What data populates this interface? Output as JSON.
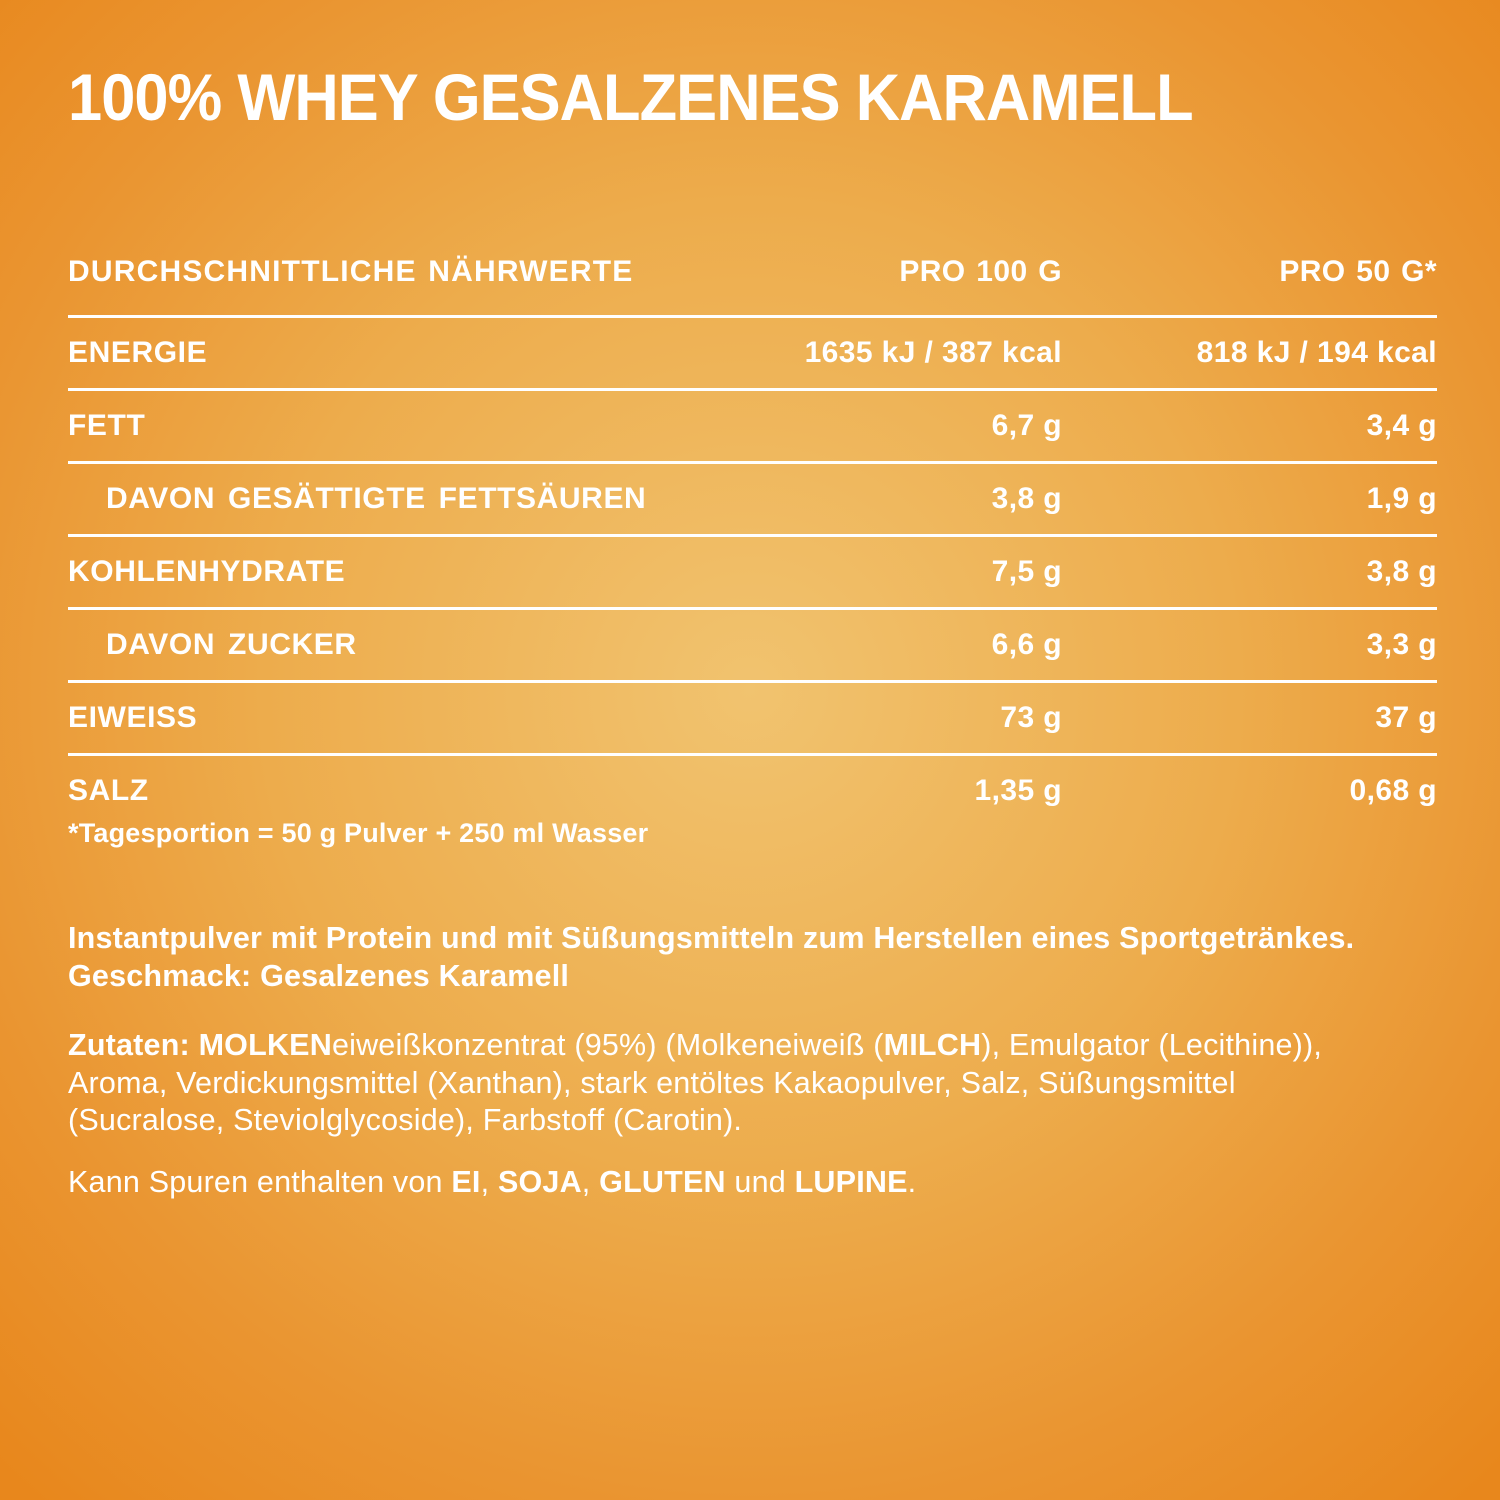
{
  "page": {
    "title": "100% WHEY GESALZENES KARAMELL"
  },
  "colors": {
    "background_center": "#F1C36F",
    "background_mid": "#ECA94B",
    "background_edge": "#E8871C",
    "text": "#FFFFFF",
    "divider": "#FFFFFF"
  },
  "nutrition_table": {
    "header": {
      "nutrients_label": "DURCHSCHNITTLICHE NÄHRWERTE",
      "per_100g_label": "PRO 100 G",
      "per_50g_label": "PRO 50 G*"
    },
    "rows": [
      {
        "label": "ENERGIE",
        "per_100g": "1635 kJ / 387 kcal",
        "per_50g": "818 kJ / 194 kcal",
        "indent": false
      },
      {
        "label": "FETT",
        "per_100g": "6,7 g",
        "per_50g": "3,4 g",
        "indent": false
      },
      {
        "label": "DAVON GESÄTTIGTE FETTSÄUREN",
        "per_100g": "3,8 g",
        "per_50g": "1,9 g",
        "indent": true
      },
      {
        "label": "KOHLENHYDRATE",
        "per_100g": "7,5 g",
        "per_50g": "3,8 g",
        "indent": false
      },
      {
        "label": "DAVON ZUCKER",
        "per_100g": "6,6 g",
        "per_50g": "3,3 g",
        "indent": true
      },
      {
        "label": "EIWEISS",
        "per_100g": "73 g",
        "per_50g": "37 g",
        "indent": false
      },
      {
        "label": "SALZ",
        "per_100g": "1,35 g",
        "per_50g": "0,68 g",
        "indent": false
      }
    ],
    "footnote": "*Tagesportion = 50 g Pulver + 250 ml Wasser"
  },
  "description": {
    "segments": [
      {
        "text": "Instantpulver mit Protein und mit Süßungsmitteln zum Herstellen eines Sportgetränkes. Geschmack: Gesalzenes Karamell",
        "bold": true
      }
    ]
  },
  "ingredients": {
    "segments": [
      {
        "text": "Zutaten:",
        "bold": true
      },
      {
        "text": " ",
        "bold": false
      },
      {
        "text": "MOLKEN",
        "bold": true
      },
      {
        "text": "eiweißkonzentrat (95%) (Molkeneiweiß (",
        "bold": false
      },
      {
        "text": "MILCH",
        "bold": true
      },
      {
        "text": "), Emulgator (Lecithine)), Aroma, Verdickungsmittel (Xanthan), stark entöltes Kakaopulver, Salz, Süßungsmittel (Sucralose, Steviolglycoside), Farbstoff (Carotin).",
        "bold": false
      }
    ]
  },
  "allergens": {
    "segments": [
      {
        "text": "Kann Spuren enthalten von ",
        "bold": false
      },
      {
        "text": "EI",
        "bold": true
      },
      {
        "text": ", ",
        "bold": false
      },
      {
        "text": "SOJA",
        "bold": true
      },
      {
        "text": ", ",
        "bold": false
      },
      {
        "text": "GLUTEN",
        "bold": true
      },
      {
        "text": " und ",
        "bold": false
      },
      {
        "text": "LUPINE",
        "bold": true
      },
      {
        "text": ".",
        "bold": false
      }
    ]
  }
}
